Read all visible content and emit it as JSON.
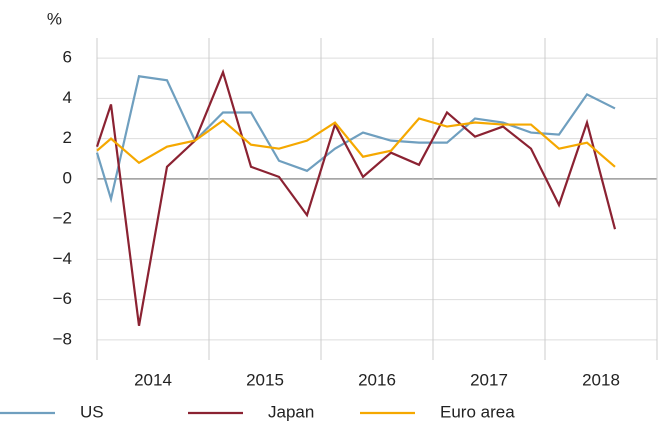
{
  "chart_data": {
    "type": "line",
    "y_unit": "%",
    "x": [
      2014.0,
      2014.125,
      2014.375,
      2014.625,
      2014.875,
      2015.125,
      2015.375,
      2015.625,
      2015.875,
      2016.125,
      2016.375,
      2016.625,
      2016.875,
      2017.125,
      2017.375,
      2017.625,
      2017.875,
      2018.125,
      2018.375,
      2018.625
    ],
    "series": [
      {
        "name": "US",
        "color": "#6f9fbf",
        "values": [
          1.3,
          -1.0,
          5.1,
          4.9,
          1.9,
          3.3,
          3.3,
          0.9,
          0.4,
          1.5,
          2.3,
          1.9,
          1.8,
          1.8,
          3.0,
          2.8,
          2.3,
          2.2,
          4.2,
          3.5
        ]
      },
      {
        "name": "Japan",
        "color": "#8b2232",
        "values": [
          1.6,
          3.7,
          -7.3,
          0.6,
          1.9,
          5.3,
          0.6,
          0.1,
          -1.8,
          2.7,
          0.1,
          1.3,
          0.7,
          3.3,
          2.1,
          2.6,
          1.5,
          -1.3,
          2.8,
          -2.5
        ]
      },
      {
        "name": "Euro area",
        "color": "#f5a800",
        "values": [
          1.4,
          2.0,
          0.8,
          1.6,
          1.9,
          2.9,
          1.7,
          1.5,
          1.9,
          2.8,
          1.1,
          1.4,
          3.0,
          2.6,
          2.8,
          2.7,
          2.7,
          1.5,
          1.8,
          0.6
        ]
      }
    ],
    "xlim": [
      2014,
      2019
    ],
    "xticks": [
      {
        "value": 2014.5,
        "label": "2014"
      },
      {
        "value": 2015.5,
        "label": "2015"
      },
      {
        "value": 2016.5,
        "label": "2016"
      },
      {
        "value": 2017.5,
        "label": "2017"
      },
      {
        "value": 2018.5,
        "label": "2018"
      }
    ],
    "xgrid": [
      2014,
      2015,
      2016,
      2017,
      2018,
      2019
    ],
    "ylim": [
      -9,
      7
    ],
    "yticks": [
      {
        "value": -8,
        "label": "−8"
      },
      {
        "value": -6,
        "label": "−6"
      },
      {
        "value": -4,
        "label": "−4"
      },
      {
        "value": -2,
        "label": "−2"
      },
      0,
      2,
      4,
      6
    ],
    "grid": true,
    "legend": "bottom"
  }
}
